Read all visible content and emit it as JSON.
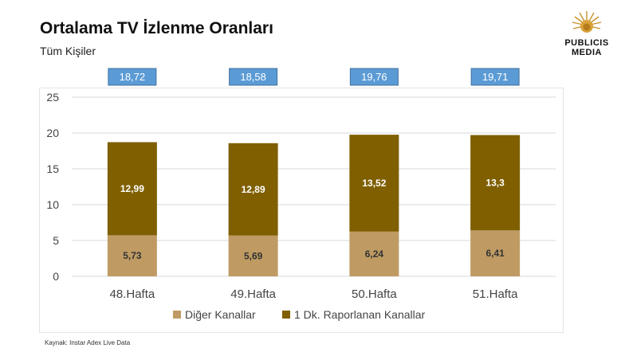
{
  "header": {
    "title": "Ortalama TV İzlenme Oranları",
    "subtitle": "Tüm Kişiler"
  },
  "logo": {
    "line1": "PUBLICIS",
    "line2": "MEDIA"
  },
  "source": "Kaynak: Instar  Adex Live Data",
  "colors": {
    "other": "#bf9b63",
    "reported": "#7f5f00",
    "total_badge": "#5b9bd5",
    "grid": "#d9d9d9"
  },
  "chart_data": {
    "type": "bar",
    "stacked": true,
    "categories": [
      "48.Hafta",
      "49.Hafta",
      "50.Hafta",
      "51.Hafta"
    ],
    "series": [
      {
        "name": "Diğer Kanallar",
        "values": [
          5.73,
          5.69,
          6.24,
          6.41
        ],
        "labels": [
          "5,73",
          "5,69",
          "6,24",
          "6,41"
        ]
      },
      {
        "name": "1 Dk. Raporlanan Kanallar",
        "values": [
          12.99,
          12.89,
          13.52,
          13.3
        ],
        "labels": [
          "12,99",
          "12,89",
          "13,52",
          "13,3"
        ]
      }
    ],
    "totals": [
      "18,72",
      "18,58",
      "19,76",
      "19,71"
    ],
    "ylim": [
      0,
      25
    ],
    "yticks": [
      0,
      5,
      10,
      15,
      20,
      25
    ],
    "grid": true,
    "legend": "bottom"
  }
}
